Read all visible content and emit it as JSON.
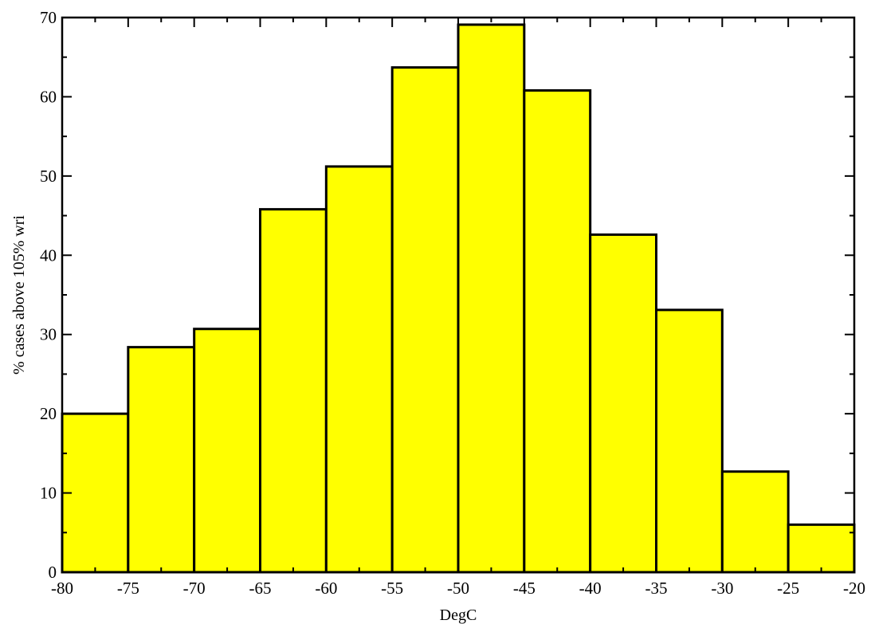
{
  "chart_data": {
    "type": "bar",
    "title": "",
    "xlabel": "DegC",
    "ylabel": "% cases above 105% wri",
    "xlim": [
      -80,
      -20
    ],
    "ylim": [
      0,
      70
    ],
    "x_ticks": [
      -80,
      -75,
      -70,
      -65,
      -60,
      -55,
      -50,
      -45,
      -40,
      -35,
      -30,
      -25,
      -20
    ],
    "x_minor_step": 2.5,
    "y_ticks": [
      0,
      10,
      20,
      30,
      40,
      50,
      60,
      70
    ],
    "y_minor_step": 5,
    "bin_width": 5,
    "bins": [
      {
        "start": -80,
        "end": -75,
        "value": 20.0
      },
      {
        "start": -75,
        "end": -70,
        "value": 28.4
      },
      {
        "start": -70,
        "end": -65,
        "value": 30.7
      },
      {
        "start": -65,
        "end": -60,
        "value": 45.8
      },
      {
        "start": -60,
        "end": -55,
        "value": 51.2
      },
      {
        "start": -55,
        "end": -50,
        "value": 63.7
      },
      {
        "start": -50,
        "end": -45,
        "value": 69.1
      },
      {
        "start": -45,
        "end": -40,
        "value": 60.8
      },
      {
        "start": -40,
        "end": -35,
        "value": 42.6
      },
      {
        "start": -35,
        "end": -30,
        "value": 33.1
      },
      {
        "start": -30,
        "end": -25,
        "value": 12.7
      },
      {
        "start": -25,
        "end": -20,
        "value": 6.0
      }
    ],
    "grid": false,
    "legend": "none",
    "colors": {
      "bar_fill": "#ffff00",
      "bar_edge": "#000000",
      "axis": "#000000",
      "background": "#ffffff"
    }
  }
}
